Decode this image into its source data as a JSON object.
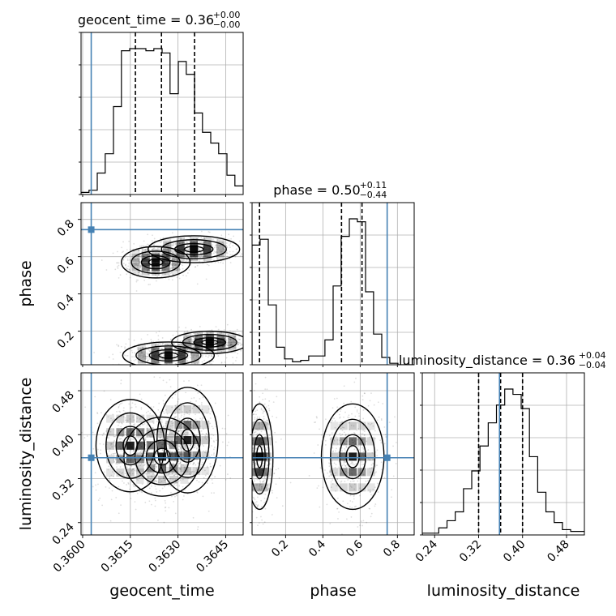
{
  "chart_data": {
    "type": "corner",
    "parameters": [
      "geocent_time",
      "phase",
      "luminosity_distance"
    ],
    "truths": {
      "geocent_time": 0.36027,
      "phase": 0.745,
      "luminosity_distance": 0.358
    },
    "truth_color": "#4682b4",
    "titles": [
      {
        "param": "geocent_time",
        "label": "geocent_time = 0.36",
        "plus": "+0.00",
        "minus": "−0.00"
      },
      {
        "param": "phase",
        "label": "phase = 0.50",
        "plus": "+0.11",
        "minus": "−0.44"
      },
      {
        "param": "luminosity_distance",
        "label": "luminosity_distance = 0.36",
        "plus": "+0.04",
        "minus": "−0.04"
      }
    ],
    "axes": {
      "geocent_time": {
        "label": "geocent_time",
        "range": [
          0.35995,
          0.36505
        ],
        "ticks": [
          0.36,
          0.3615,
          0.363,
          0.3645
        ],
        "tick_labels": [
          "0.3600",
          "0.3615",
          "0.3630",
          "0.3645"
        ]
      },
      "phase": {
        "label": "phase",
        "range": [
          0.02,
          0.89
        ],
        "ticks": [
          0.2,
          0.4,
          0.6,
          0.8
        ],
        "tick_labels": [
          "0.2",
          "0.4",
          "0.6",
          "0.8"
        ]
      },
      "luminosity_distance": {
        "label": "luminosity_distance",
        "range": [
          0.2175,
          0.5125
        ],
        "ticks": [
          0.24,
          0.32,
          0.4,
          0.48
        ],
        "tick_labels": [
          "0.24",
          "0.32",
          "0.40",
          "0.48"
        ]
      }
    },
    "histograms": {
      "geocent_time": {
        "bin_edges": [
          0.35995,
          0.3602,
          0.36046,
          0.36071,
          0.36097,
          0.36122,
          0.36148,
          0.36173,
          0.36199,
          0.36224,
          0.3625,
          0.36275,
          0.36301,
          0.36326,
          0.36352,
          0.36377,
          0.36403,
          0.36428,
          0.36454,
          0.36479,
          0.36505
        ],
        "counts": [
          0.01,
          0.02,
          0.1,
          0.19,
          0.41,
          0.67,
          0.68,
          0.68,
          0.67,
          0.68,
          0.66,
          0.47,
          0.62,
          0.56,
          0.38,
          0.29,
          0.24,
          0.19,
          0.09,
          0.04
        ],
        "quantiles": [
          0.36166,
          0.36248,
          0.36352
        ]
      },
      "phase": {
        "bin_edges": [
          0.02,
          0.063,
          0.107,
          0.15,
          0.194,
          0.237,
          0.281,
          0.324,
          0.368,
          0.411,
          0.455,
          0.498,
          0.542,
          0.585,
          0.629,
          0.672,
          0.716,
          0.759,
          0.803,
          0.846,
          0.89
        ],
        "counts": [
          0.82,
          0.86,
          0.41,
          0.12,
          0.04,
          0.02,
          0.03,
          0.06,
          0.06,
          0.17,
          0.54,
          0.88,
          1.0,
          0.98,
          0.5,
          0.21,
          0.05,
          0.01,
          0.0,
          0.0
        ],
        "quantiles": [
          0.06,
          0.5,
          0.61
        ]
      },
      "luminosity_distance": {
        "bin_edges": [
          0.2175,
          0.2325,
          0.2475,
          0.2625,
          0.2775,
          0.2925,
          0.3075,
          0.3225,
          0.3375,
          0.3525,
          0.3675,
          0.3825,
          0.3975,
          0.4125,
          0.4275,
          0.4425,
          0.4575,
          0.4725,
          0.4875,
          0.5125
        ],
        "counts": [
          0.01,
          0.01,
          0.04,
          0.08,
          0.13,
          0.26,
          0.36,
          0.5,
          0.63,
          0.73,
          0.82,
          0.79,
          0.71,
          0.44,
          0.24,
          0.13,
          0.07,
          0.03,
          0.02
        ],
        "quantiles": [
          0.32,
          0.36,
          0.4
        ]
      }
    },
    "density_2d": {
      "phase_vs_geocent_time": {
        "modes": [
          {
            "x": 0.3623,
            "y": 0.57,
            "sx": 0.00045,
            "sy": 0.035
          },
          {
            "x": 0.3635,
            "y": 0.64,
            "sx": 0.0006,
            "sy": 0.03
          },
          {
            "x": 0.3627,
            "y": 0.07,
            "sx": 0.0006,
            "sy": 0.03
          },
          {
            "x": 0.364,
            "y": 0.14,
            "sx": 0.0005,
            "sy": 0.025
          }
        ]
      },
      "luminosity_distance_vs_geocent_time": {
        "modes": [
          {
            "x": 0.3615,
            "y": 0.38,
            "sx": 0.00045,
            "sy": 0.035
          },
          {
            "x": 0.3625,
            "y": 0.36,
            "sx": 0.0005,
            "sy": 0.03
          },
          {
            "x": 0.3633,
            "y": 0.39,
            "sx": 0.0004,
            "sy": 0.04
          }
        ]
      },
      "luminosity_distance_vs_phase": {
        "modes": [
          {
            "x": 0.06,
            "y": 0.36,
            "sx": 0.03,
            "sy": 0.04
          },
          {
            "x": 0.56,
            "y": 0.36,
            "sx": 0.07,
            "sy": 0.04
          }
        ]
      }
    }
  }
}
